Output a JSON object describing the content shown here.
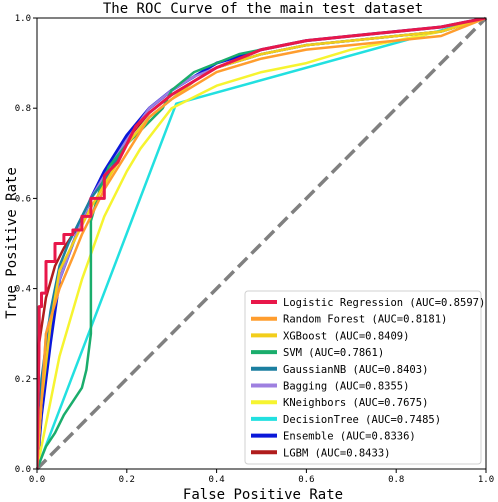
{
  "chart_data": {
    "type": "line",
    "title": "The ROC Curve of the main test dataset",
    "xlabel": "False Positive Rate",
    "ylabel": "True Positive Rate",
    "xlim": [
      0,
      1
    ],
    "ylim": [
      0,
      1
    ],
    "x_ticks": [
      "0.0",
      "0.2",
      "0.4",
      "0.6",
      "0.8",
      "1.0"
    ],
    "y_ticks": [
      "0.0",
      "0.2",
      "0.4",
      "0.6",
      "0.8",
      "1.0"
    ],
    "grid": false,
    "legend_position": "bottom-right",
    "diagonal": {
      "x": [
        0,
        1
      ],
      "y": [
        0,
        1
      ],
      "color": "#808080",
      "style": "dashed"
    },
    "series": [
      {
        "name": "Logistic Regression (AUC=0.8597)",
        "color": "#e8174a",
        "x": [
          0,
          0.005,
          0.005,
          0.01,
          0.01,
          0.02,
          0.02,
          0.04,
          0.04,
          0.06,
          0.06,
          0.08,
          0.08,
          0.1,
          0.1,
          0.12,
          0.12,
          0.15,
          0.15,
          0.18,
          0.2,
          0.22,
          0.25,
          0.3,
          0.35,
          0.4,
          0.45,
          0.5,
          0.6,
          0.7,
          0.8,
          0.9,
          1.0
        ],
        "y": [
          0,
          0.3,
          0.36,
          0.36,
          0.39,
          0.39,
          0.46,
          0.46,
          0.5,
          0.5,
          0.52,
          0.52,
          0.53,
          0.53,
          0.56,
          0.56,
          0.6,
          0.6,
          0.65,
          0.68,
          0.72,
          0.76,
          0.79,
          0.83,
          0.86,
          0.89,
          0.91,
          0.93,
          0.95,
          0.96,
          0.97,
          0.98,
          1.0
        ]
      },
      {
        "name": "Random Forest (AUC=0.8181)",
        "color": "#ff9d2e",
        "x": [
          0,
          0.02,
          0.05,
          0.08,
          0.1,
          0.12,
          0.15,
          0.2,
          0.25,
          0.3,
          0.35,
          0.4,
          0.5,
          0.6,
          0.7,
          0.8,
          0.9,
          1.0
        ],
        "y": [
          0,
          0.3,
          0.4,
          0.47,
          0.52,
          0.56,
          0.62,
          0.7,
          0.78,
          0.82,
          0.85,
          0.88,
          0.91,
          0.93,
          0.94,
          0.95,
          0.96,
          1.0
        ]
      },
      {
        "name": "XGBoost (AUC=0.8409)",
        "color": "#f2ce1b",
        "x": [
          0,
          0.01,
          0.03,
          0.05,
          0.08,
          0.1,
          0.12,
          0.15,
          0.18,
          0.2,
          0.25,
          0.3,
          0.35,
          0.4,
          0.5,
          0.6,
          0.7,
          0.8,
          0.9,
          1.0
        ],
        "y": [
          0,
          0.15,
          0.32,
          0.44,
          0.5,
          0.54,
          0.58,
          0.63,
          0.68,
          0.72,
          0.78,
          0.82,
          0.86,
          0.89,
          0.92,
          0.94,
          0.95,
          0.96,
          0.97,
          1.0
        ]
      },
      {
        "name": "SVM (AUC=0.7861)",
        "color": "#1aad6c",
        "x": [
          0,
          0.02,
          0.04,
          0.06,
          0.08,
          0.1,
          0.11,
          0.12,
          0.12,
          0.14,
          0.16,
          0.2,
          0.24,
          0.28,
          0.3,
          0.35,
          0.4,
          0.45,
          0.5,
          0.6,
          0.7,
          0.8,
          0.9,
          1.0
        ],
        "y": [
          0,
          0.05,
          0.08,
          0.12,
          0.15,
          0.18,
          0.22,
          0.3,
          0.55,
          0.62,
          0.67,
          0.72,
          0.76,
          0.8,
          0.84,
          0.88,
          0.9,
          0.92,
          0.93,
          0.95,
          0.96,
          0.97,
          0.98,
          1.0
        ]
      },
      {
        "name": "GaussianNB (AUC=0.8403)",
        "color": "#1b7fa0",
        "x": [
          0,
          0.01,
          0.03,
          0.05,
          0.07,
          0.1,
          0.12,
          0.15,
          0.18,
          0.2,
          0.25,
          0.3,
          0.35,
          0.4,
          0.5,
          0.6,
          0.7,
          0.8,
          0.9,
          1.0
        ],
        "y": [
          0,
          0.2,
          0.35,
          0.45,
          0.5,
          0.56,
          0.6,
          0.64,
          0.69,
          0.72,
          0.78,
          0.82,
          0.86,
          0.89,
          0.92,
          0.94,
          0.95,
          0.96,
          0.97,
          1.0
        ]
      },
      {
        "name": "Bagging (AUC=0.8355)",
        "color": "#9e80e0",
        "x": [
          0,
          0.02,
          0.05,
          0.08,
          0.1,
          0.12,
          0.15,
          0.2,
          0.25,
          0.3,
          0.35,
          0.4,
          0.5,
          0.6,
          0.7,
          0.8,
          0.9,
          1.0
        ],
        "y": [
          0,
          0.3,
          0.42,
          0.5,
          0.55,
          0.6,
          0.65,
          0.73,
          0.8,
          0.84,
          0.87,
          0.89,
          0.92,
          0.94,
          0.95,
          0.96,
          0.97,
          1.0
        ]
      },
      {
        "name": "KNeighbors (AUC=0.7675)",
        "color": "#f6f430",
        "x": [
          0,
          0.05,
          0.1,
          0.15,
          0.2,
          0.23,
          0.3,
          0.4,
          0.5,
          0.6,
          0.7,
          0.8,
          0.9,
          1.0
        ],
        "y": [
          0,
          0.25,
          0.42,
          0.56,
          0.66,
          0.71,
          0.8,
          0.85,
          0.88,
          0.9,
          0.93,
          0.95,
          0.97,
          1.0
        ]
      },
      {
        "name": "DecisionTree (AUC=0.7485)",
        "color": "#22e0e0",
        "x": [
          0,
          0.31,
          1.0
        ],
        "y": [
          0,
          0.81,
          1.0
        ]
      },
      {
        "name": "Ensemble (AUC=0.8336)",
        "color": "#0a18d9",
        "x": [
          0,
          0.01,
          0.03,
          0.05,
          0.08,
          0.1,
          0.12,
          0.15,
          0.2,
          0.25,
          0.3,
          0.35,
          0.4,
          0.5,
          0.6,
          0.7,
          0.8,
          0.9,
          1.0
        ],
        "y": [
          0,
          0.12,
          0.28,
          0.42,
          0.5,
          0.55,
          0.6,
          0.66,
          0.74,
          0.8,
          0.84,
          0.87,
          0.9,
          0.93,
          0.95,
          0.96,
          0.97,
          0.98,
          1.0
        ]
      },
      {
        "name": "LGBM (AUC=0.8433)",
        "color": "#b01c1c",
        "x": [
          0,
          0.005,
          0.02,
          0.04,
          0.06,
          0.08,
          0.1,
          0.12,
          0.15,
          0.18,
          0.2,
          0.25,
          0.3,
          0.35,
          0.4,
          0.5,
          0.6,
          0.7,
          0.8,
          0.9,
          1.0
        ],
        "y": [
          0,
          0.28,
          0.38,
          0.45,
          0.49,
          0.52,
          0.55,
          0.6,
          0.65,
          0.69,
          0.73,
          0.79,
          0.83,
          0.86,
          0.89,
          0.92,
          0.94,
          0.95,
          0.96,
          0.97,
          1.0
        ]
      }
    ]
  }
}
